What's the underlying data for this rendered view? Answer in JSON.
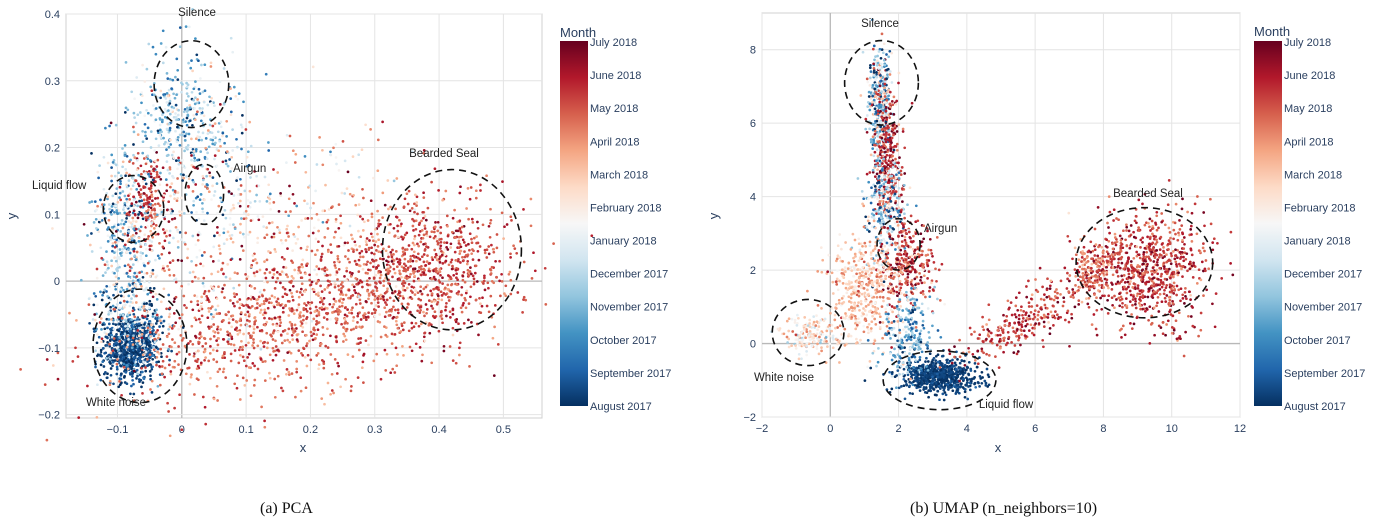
{
  "chart_data": [
    {
      "type": "scatter",
      "panel_id": "pca",
      "caption": "(a) PCA",
      "xlabel": "x",
      "ylabel": "y",
      "xlim": [
        -0.18,
        0.56
      ],
      "ylim": [
        -0.205,
        0.4
      ],
      "x_ticks": [
        -0.1,
        0,
        0.1,
        0.2,
        0.3,
        0.4,
        0.5
      ],
      "x_tick_labels": [
        "−0.1",
        "0",
        "0.1",
        "0.2",
        "0.3",
        "0.4",
        "0.5"
      ],
      "y_ticks": [
        -0.2,
        -0.1,
        0,
        0.1,
        0.2,
        0.3,
        0.4
      ],
      "y_tick_labels": [
        "−0.2",
        "−0.1",
        "0",
        "0.1",
        "0.2",
        "0.3",
        "0.4"
      ],
      "grid": true,
      "colorbar": {
        "title": "Month",
        "labels": [
          "July 2018",
          "June 2018",
          "May 2018",
          "April 2018",
          "March 2018",
          "February 2018",
          "January 2018",
          "December 2017",
          "November 2017",
          "October 2017",
          "September 2017",
          "August 2017"
        ],
        "colorscale": "RdBu (August 2017 dark blue → July 2018 dark red)"
      },
      "clusters": [
        {
          "label": "Silence",
          "cx": 0.015,
          "cy": 0.295,
          "rx": 0.058,
          "ry": 0.065,
          "month_pos": 0.3
        },
        {
          "label": "Airgun",
          "cx": 0.035,
          "cy": 0.13,
          "rx": 0.03,
          "ry": 0.045,
          "month_pos": 0.55
        },
        {
          "label": "Liquid flow",
          "cx": -0.075,
          "cy": 0.108,
          "rx": 0.047,
          "ry": 0.05,
          "month_pos": 0.4
        },
        {
          "label": "Bearded Seal",
          "cx": 0.42,
          "cy": 0.047,
          "rx": 0.108,
          "ry": 0.12,
          "month_pos": 0.88
        },
        {
          "label": "White noise",
          "cx": -0.065,
          "cy": -0.097,
          "rx": 0.073,
          "ry": 0.085,
          "month_pos": 0.05
        }
      ]
    },
    {
      "type": "scatter",
      "panel_id": "umap",
      "caption": "(b) UMAP (n_neighbors=10)",
      "xlabel": "x",
      "ylabel": "y",
      "xlim": [
        -2,
        12
      ],
      "ylim": [
        -2,
        9
      ],
      "x_ticks": [
        -2,
        0,
        2,
        4,
        6,
        8,
        10,
        12
      ],
      "x_tick_labels": [
        "−2",
        "0",
        "2",
        "4",
        "6",
        "8",
        "10",
        "12"
      ],
      "y_ticks": [
        -2,
        0,
        2,
        4,
        6,
        8
      ],
      "y_tick_labels": [
        "−2",
        "0",
        "2",
        "4",
        "6",
        "8"
      ],
      "grid": true,
      "colorbar": {
        "title": "Month",
        "labels": [
          "July 2018",
          "June 2018",
          "May 2018",
          "April 2018",
          "March 2018",
          "February 2018",
          "January 2018",
          "December 2017",
          "November 2017",
          "October 2017",
          "September 2017",
          "August 2017"
        ],
        "colorscale": "RdBu (August 2017 dark blue → July 2018 dark red)"
      },
      "clusters": [
        {
          "label": "Silence",
          "cx": 1.5,
          "cy": 7.1,
          "rx": 1.08,
          "ry": 1.15,
          "month_pos": 0.35
        },
        {
          "label": "Airgun",
          "cx": 2.0,
          "cy": 2.7,
          "rx": 0.63,
          "ry": 0.7,
          "month_pos": 0.5
        },
        {
          "label": "Bearded Seal",
          "cx": 9.2,
          "cy": 2.2,
          "rx": 2.0,
          "ry": 1.5,
          "month_pos": 0.9
        },
        {
          "label": "White noise",
          "cx": -0.65,
          "cy": 0.3,
          "rx": 1.05,
          "ry": 0.9,
          "month_pos": 0.45
        },
        {
          "label": "Liquid flow",
          "cx": 3.2,
          "cy": -1.0,
          "rx": 1.65,
          "ry": 0.8,
          "month_pos": 0.05
        }
      ]
    }
  ]
}
